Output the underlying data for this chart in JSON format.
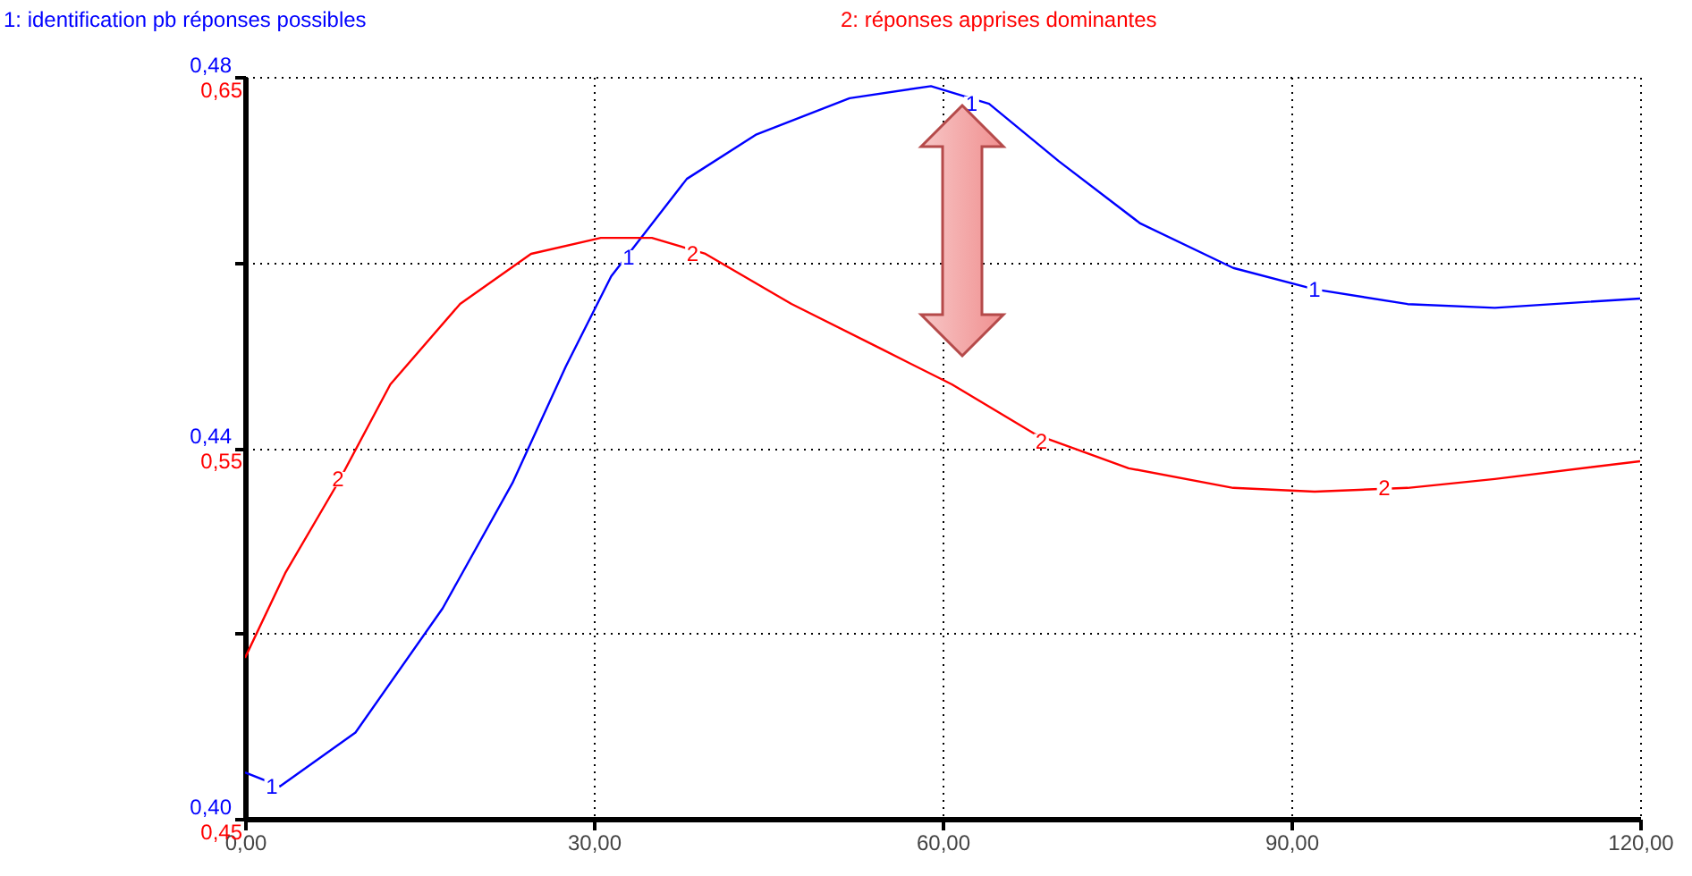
{
  "chart_data": {
    "type": "line",
    "series": [
      {
        "name": "1: identification pb réponses possibles",
        "color": "#0000ff",
        "x": [
          0,
          3,
          9.5,
          17,
          23,
          27.6,
          31.5,
          38,
          44,
          52,
          59,
          64,
          70,
          77,
          85,
          92,
          100,
          107.5,
          120
        ],
        "values": [
          0.405,
          0.4035,
          0.4093,
          0.4227,
          0.4362,
          0.4488,
          0.4585,
          0.469,
          0.4738,
          0.4777,
          0.479,
          0.4771,
          0.4709,
          0.4642,
          0.4594,
          0.4571,
          0.4555,
          0.4551,
          0.4561
        ]
      },
      {
        "name": "2: réponses apprises dominantes",
        "color": "#ff0000",
        "axis": "y2",
        "x": [
          0,
          3.5,
          8,
          12.5,
          18.5,
          24.6,
          30.6,
          35,
          39.6,
          47,
          54.7,
          60.8,
          68,
          76,
          85,
          92,
          100,
          107.5,
          120
        ],
        "values": [
          0.4934,
          0.5165,
          0.5406,
          0.5671,
          0.5888,
          0.6023,
          0.6066,
          0.6066,
          0.6023,
          0.5888,
          0.5767,
          0.5671,
          0.5536,
          0.5445,
          0.5392,
          0.5382,
          0.5392,
          0.5416,
          0.5464
        ]
      }
    ],
    "xlim": [
      0,
      120
    ],
    "xticks": [
      {
        "value": 0,
        "label": "0,00"
      },
      {
        "value": 30,
        "label": "30,00"
      },
      {
        "value": 60,
        "label": "60,00"
      },
      {
        "value": 90,
        "label": "90,00"
      },
      {
        "value": 120,
        "label": "120,00"
      }
    ],
    "ylim": [
      0.4,
      0.48
    ],
    "yticks": [
      {
        "value": 0.4,
        "label": "0,40"
      },
      {
        "value": 0.42,
        "label": null
      },
      {
        "value": 0.44,
        "label": "0,44"
      },
      {
        "value": 0.46,
        "label": null
      },
      {
        "value": 0.48,
        "label": "0,48"
      }
    ],
    "y2lim": [
      0.45,
      0.65
    ],
    "y2ticks": [
      {
        "value": 0.45,
        "label": "0,45"
      },
      {
        "value": 0.55,
        "label": "0,55"
      },
      {
        "value": 0.65,
        "label": "0,65"
      }
    ],
    "annotations": [
      {
        "text": "1",
        "x": 2.3,
        "y": 0.4035
      },
      {
        "text": "1",
        "x": 33,
        "y": 0.4605
      },
      {
        "text": "1",
        "x": 62.5,
        "y": 0.4771
      },
      {
        "text": "1",
        "x": 92,
        "y": 0.4571
      },
      {
        "text": "2",
        "x": 8,
        "y": 0.4366
      },
      {
        "text": "2",
        "x": 38.5,
        "y": 0.4609
      },
      {
        "text": "2",
        "x": 68.5,
        "y": 0.4407
      },
      {
        "text": "2",
        "x": 98,
        "y": 0.4357
      }
    ],
    "grid": true,
    "legend": "top"
  }
}
